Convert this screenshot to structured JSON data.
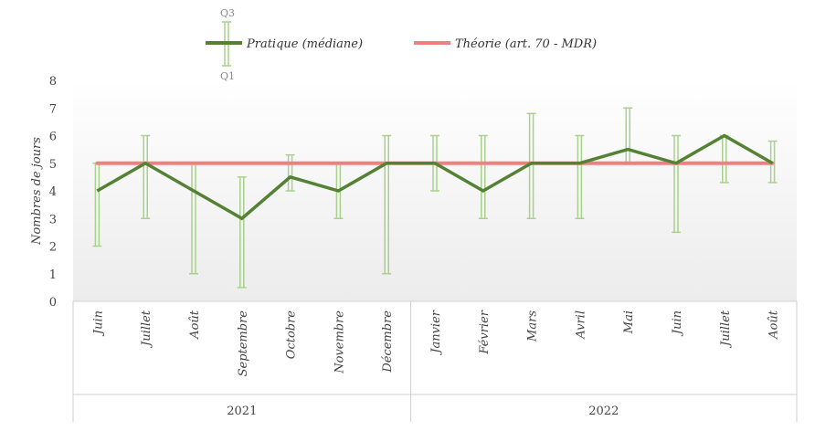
{
  "chart_data": {
    "type": "line",
    "ylabel": "Nombres de jours",
    "ylim": [
      0,
      8
    ],
    "yticks": [
      "0",
      "1",
      "2",
      "3",
      "4",
      "5",
      "6",
      "7",
      "8"
    ],
    "categories": [
      "Juin",
      "Juillet",
      "Août",
      "Septembre",
      "Octobre",
      "Novembre",
      "Décembre",
      "Janvier",
      "Février",
      "Mars",
      "Avril",
      "Mai",
      "Juin",
      "Juillet",
      "Août"
    ],
    "groups": [
      {
        "label": "2021",
        "count": 7
      },
      {
        "label": "2022",
        "count": 8
      }
    ],
    "series": [
      {
        "name": "Pratique (médiane)",
        "color": "#548235",
        "values": [
          4,
          5,
          4,
          3,
          4.5,
          4,
          5,
          5,
          4,
          5,
          5,
          5.5,
          5,
          6,
          5
        ],
        "q1": [
          2,
          3,
          1,
          0.5,
          4,
          3,
          1,
          4,
          3,
          3,
          3,
          5,
          2.5,
          4.3,
          4.3
        ],
        "q3": [
          5,
          6,
          5,
          4.5,
          5.3,
          5,
          6,
          6,
          6,
          6.8,
          6,
          7,
          6,
          6,
          5.8
        ]
      },
      {
        "name": "Théorie (art. 70 - MDR)",
        "color": "#F08080",
        "values": [
          5,
          5,
          5,
          5,
          5,
          5,
          5,
          5,
          5,
          5,
          5,
          5,
          5,
          5,
          5
        ]
      }
    ],
    "error_bar_color": "#A9D18E",
    "legend": {
      "position": "top",
      "q3_label": "Q3",
      "q1_label": "Q1"
    },
    "background_gradient": [
      "#ffffff",
      "#ececec"
    ]
  }
}
